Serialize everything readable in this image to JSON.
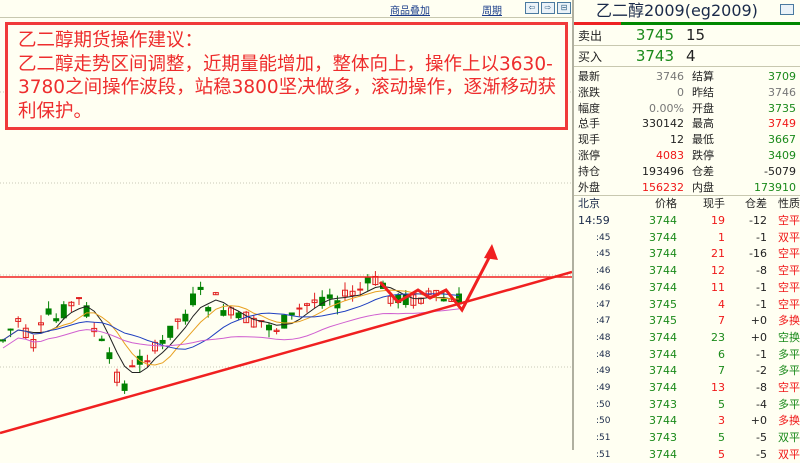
{
  "toolbar": {
    "overlay": "商品叠加",
    "period": "周期",
    "left": "⇦",
    "right": "⇨",
    "split": "⊟"
  },
  "advice": {
    "heading": "乙二醇期货操作建议：",
    "body": "乙二醇走势区间调整，近期量能增加，整体向上，操作上以3630-3780之间操作波段，站稳3800坚决做多，滚动操作，逐渐移动获利保护。"
  },
  "panel": {
    "title": "乙二醇2009(eg2009)",
    "window_icon": "restore-icon",
    "ask": {
      "label": "卖出",
      "price": "3745",
      "volume": "15"
    },
    "bid": {
      "label": "买入",
      "price": "3743",
      "volume": "4"
    },
    "stats": [
      {
        "l1": "最新",
        "v1": "3746",
        "c1": "gry",
        "l2": "结算",
        "v2": "3709",
        "c2": "grn"
      },
      {
        "l1": "涨跌",
        "v1": "0",
        "c1": "gry",
        "l2": "昨结",
        "v2": "3746",
        "c2": "gry"
      },
      {
        "l1": "幅度",
        "v1": "0.00%",
        "c1": "gry",
        "l2": "开盘",
        "v2": "3735",
        "c2": "grn"
      },
      {
        "l1": "总手",
        "v1": "330142",
        "c1": "blk",
        "l2": "最高",
        "v2": "3749",
        "c2": "red"
      },
      {
        "l1": "现手",
        "v1": "12",
        "c1": "blk",
        "l2": "最低",
        "v2": "3667",
        "c2": "grn"
      },
      {
        "l1": "涨停",
        "v1": "4083",
        "c1": "red",
        "l2": "跌停",
        "v2": "3409",
        "c2": "grn"
      },
      {
        "l1": "持仓",
        "v1": "193496",
        "c1": "blk",
        "l2": "仓差",
        "v2": "-5079",
        "c2": "blk"
      },
      {
        "l1": "外盘",
        "v1": "156232",
        "c1": "red",
        "l2": "内盘",
        "v2": "173910",
        "c2": "grn"
      }
    ],
    "ticks_header": {
      "time": "北京",
      "price": "价格",
      "vol": "现手",
      "oi": "仓差",
      "nature": "性质"
    },
    "ticks": [
      {
        "time": "14:59",
        "price": "3744",
        "vol": "19",
        "vc": "red",
        "oi": "-12",
        "nature": "空平",
        "nc": "red"
      },
      {
        "time": ":45",
        "price": "3744",
        "vol": "1",
        "vc": "red",
        "oi": "-1",
        "nature": "双平",
        "nc": "red"
      },
      {
        "time": ":45",
        "price": "3744",
        "vol": "21",
        "vc": "red",
        "oi": "-16",
        "nature": "空平",
        "nc": "red"
      },
      {
        "time": ":46",
        "price": "3744",
        "vol": "12",
        "vc": "red",
        "oi": "-8",
        "nature": "空平",
        "nc": "red"
      },
      {
        "time": ":46",
        "price": "3744",
        "vol": "11",
        "vc": "red",
        "oi": "-1",
        "nature": "空平",
        "nc": "red"
      },
      {
        "time": ":47",
        "price": "3745",
        "vol": "4",
        "vc": "red",
        "oi": "-1",
        "nature": "空平",
        "nc": "red"
      },
      {
        "time": ":47",
        "price": "3745",
        "vol": "7",
        "vc": "red",
        "oi": "+0",
        "nature": "多换",
        "nc": "red"
      },
      {
        "time": ":48",
        "price": "3744",
        "vol": "23",
        "vc": "grn",
        "oi": "+0",
        "nature": "空换",
        "nc": "grn"
      },
      {
        "time": ":48",
        "price": "3744",
        "vol": "6",
        "vc": "grn",
        "oi": "-1",
        "nature": "多平",
        "nc": "grn"
      },
      {
        "time": ":49",
        "price": "3744",
        "vol": "7",
        "vc": "grn",
        "oi": "-2",
        "nature": "多平",
        "nc": "grn"
      },
      {
        "time": ":49",
        "price": "3744",
        "vol": "13",
        "vc": "red",
        "oi": "-8",
        "nature": "空平",
        "nc": "red"
      },
      {
        "time": ":50",
        "price": "3743",
        "vol": "5",
        "vc": "grn",
        "oi": "-4",
        "nature": "多平",
        "nc": "grn"
      },
      {
        "time": ":50",
        "price": "3744",
        "vol": "3",
        "vc": "red",
        "oi": "+0",
        "nature": "多换",
        "nc": "red"
      },
      {
        "time": ":51",
        "price": "3743",
        "vol": "5",
        "vc": "grn",
        "oi": "-5",
        "nature": "双平",
        "nc": "grn"
      },
      {
        "time": ":51",
        "price": "3744",
        "vol": "5",
        "vc": "red",
        "oi": "-5",
        "nature": "双平",
        "nc": "red"
      }
    ]
  },
  "colors": {
    "up": "#e02020",
    "down": "#008000",
    "trend": "#f02020",
    "ma5": "#222222",
    "ma10": "#e8a020",
    "ma20": "#2040c0",
    "ma60": "#d060d0"
  }
}
